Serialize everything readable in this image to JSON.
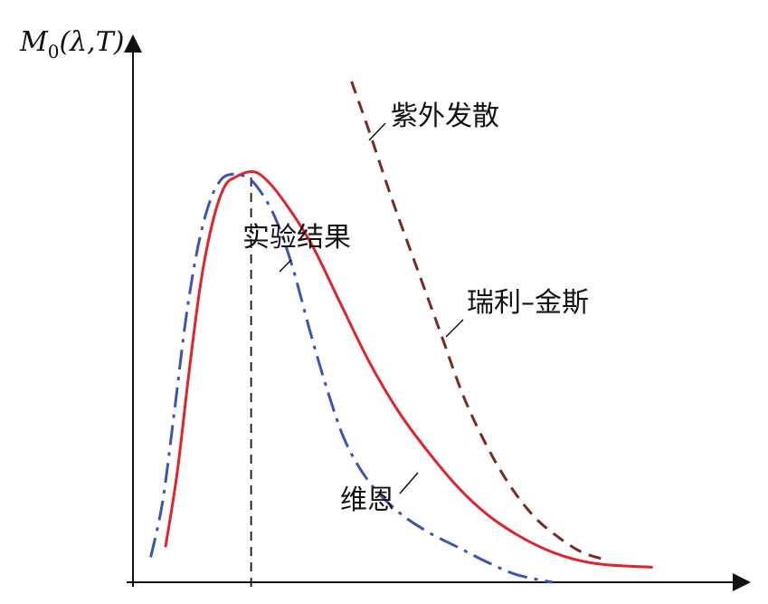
{
  "chart_data": {
    "type": "line",
    "title": "",
    "ylabel_main": "M",
    "ylabel_sub": "0",
    "ylabel_rest": "(λ,T)",
    "xlabel": "",
    "grid": false,
    "legend": "none",
    "x_range": [
      0,
      1
    ],
    "y_range": [
      0,
      1
    ],
    "annotations": {
      "uv_divergence": "紫外发散",
      "experiment": "实验结果",
      "rayleigh_jeans": "瑞利–金斯",
      "wien": "维恩"
    },
    "series": [
      {
        "key": "experiment",
        "color": "#e0242c",
        "style": "solid",
        "points": [
          [
            0.055,
            0.07
          ],
          [
            0.075,
            0.22
          ],
          [
            0.095,
            0.42
          ],
          [
            0.115,
            0.6
          ],
          [
            0.135,
            0.72
          ],
          [
            0.155,
            0.79
          ],
          [
            0.175,
            0.81
          ],
          [
            0.2,
            0.82
          ],
          [
            0.22,
            0.81
          ],
          [
            0.25,
            0.77
          ],
          [
            0.3,
            0.68
          ],
          [
            0.35,
            0.56
          ],
          [
            0.4,
            0.44
          ],
          [
            0.45,
            0.34
          ],
          [
            0.5,
            0.26
          ],
          [
            0.55,
            0.19
          ],
          [
            0.6,
            0.135
          ],
          [
            0.65,
            0.095
          ],
          [
            0.7,
            0.065
          ],
          [
            0.75,
            0.045
          ],
          [
            0.8,
            0.035
          ],
          [
            0.88,
            0.03
          ]
        ]
      },
      {
        "key": "wien",
        "color": "#3c55b5",
        "style": "dashdot",
        "points": [
          [
            0.03,
            0.05
          ],
          [
            0.05,
            0.16
          ],
          [
            0.07,
            0.34
          ],
          [
            0.09,
            0.53
          ],
          [
            0.11,
            0.67
          ],
          [
            0.13,
            0.76
          ],
          [
            0.15,
            0.805
          ],
          [
            0.17,
            0.815
          ],
          [
            0.19,
            0.81
          ],
          [
            0.21,
            0.79
          ],
          [
            0.24,
            0.73
          ],
          [
            0.27,
            0.63
          ],
          [
            0.3,
            0.5
          ],
          [
            0.33,
            0.38
          ],
          [
            0.36,
            0.28
          ],
          [
            0.4,
            0.2
          ],
          [
            0.45,
            0.14
          ],
          [
            0.5,
            0.1
          ],
          [
            0.55,
            0.07
          ],
          [
            0.6,
            0.04
          ],
          [
            0.65,
            0.015
          ],
          [
            0.71,
            0.0
          ]
        ]
      },
      {
        "key": "rayleigh_jeans",
        "color": "#7a2a20",
        "style": "dashed",
        "points": [
          [
            0.37,
            1.0
          ],
          [
            0.4,
            0.9
          ],
          [
            0.44,
            0.76
          ],
          [
            0.48,
            0.63
          ],
          [
            0.52,
            0.5
          ],
          [
            0.56,
            0.37
          ],
          [
            0.6,
            0.27
          ],
          [
            0.64,
            0.19
          ],
          [
            0.68,
            0.13
          ],
          [
            0.72,
            0.09
          ],
          [
            0.76,
            0.06
          ],
          [
            0.8,
            0.045
          ]
        ]
      }
    ],
    "peak_marker_x": 0.2
  }
}
